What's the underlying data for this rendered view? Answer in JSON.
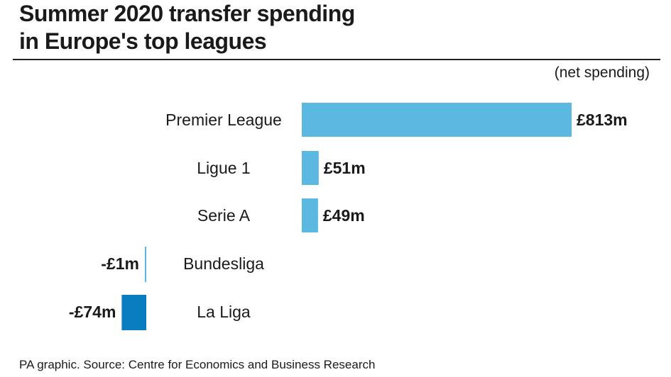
{
  "chart_data": {
    "type": "bar",
    "orientation": "horizontal",
    "title": "Summer 2020 transfer spending in Europe's top leagues",
    "title_lines": [
      "Summer 2020 transfer spending",
      "in Europe's top leagues"
    ],
    "unit_note": "(net spending)",
    "categories": [
      "Premier League",
      "Ligue 1",
      "Serie A",
      "Bundesliga",
      "La Liga"
    ],
    "values": [
      813,
      51,
      49,
      -1,
      -74
    ],
    "data_labels": [
      "£813m",
      "£51m",
      "£49m",
      "-£1m",
      "-£74m"
    ],
    "unit": "£m",
    "grid": false,
    "colors": {
      "positive": "#5bb8e0",
      "negative": "#0a7cc0",
      "bundesliga_line": "#5bb8e0"
    }
  },
  "source": "PA graphic. Source: Centre for Economics and Business Research"
}
